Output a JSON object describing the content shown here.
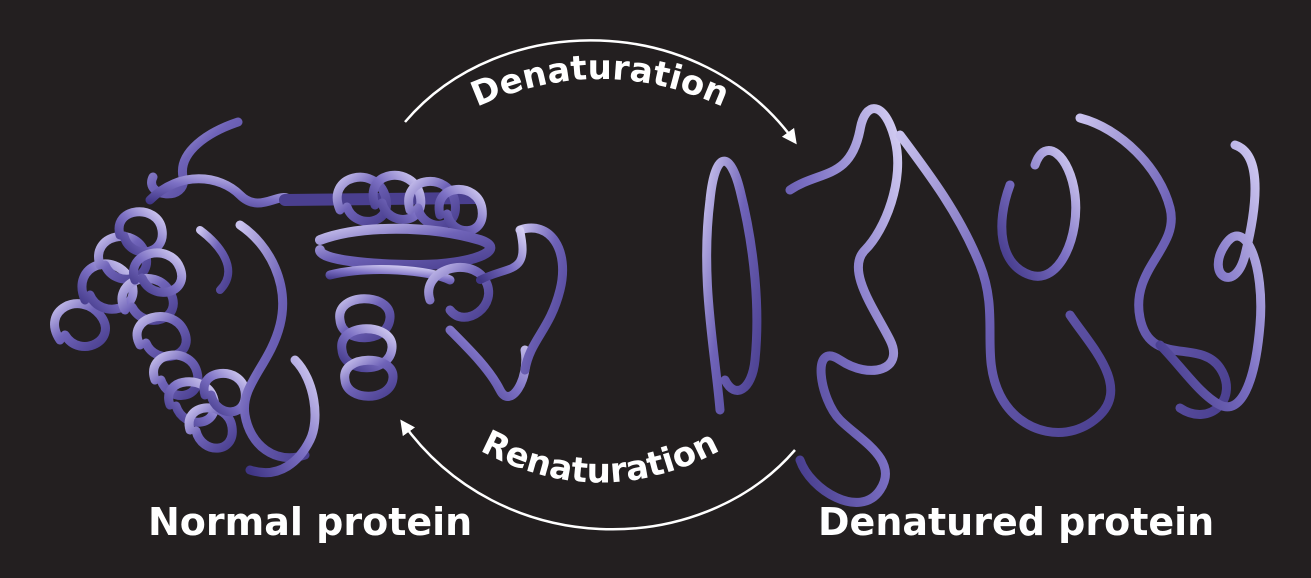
{
  "labels": {
    "normal_protein": "Normal protein",
    "denatured_protein": "Denatured protein",
    "denaturation": "Denaturation",
    "renaturation": "Renaturation"
  },
  "colors": {
    "background": "#231f20",
    "ribbon_dark": "#4a3f8f",
    "ribbon_mid": "#6f63b8",
    "ribbon_light": "#c9c2ee",
    "arrow": "#ffffff",
    "text": "#ffffff"
  }
}
